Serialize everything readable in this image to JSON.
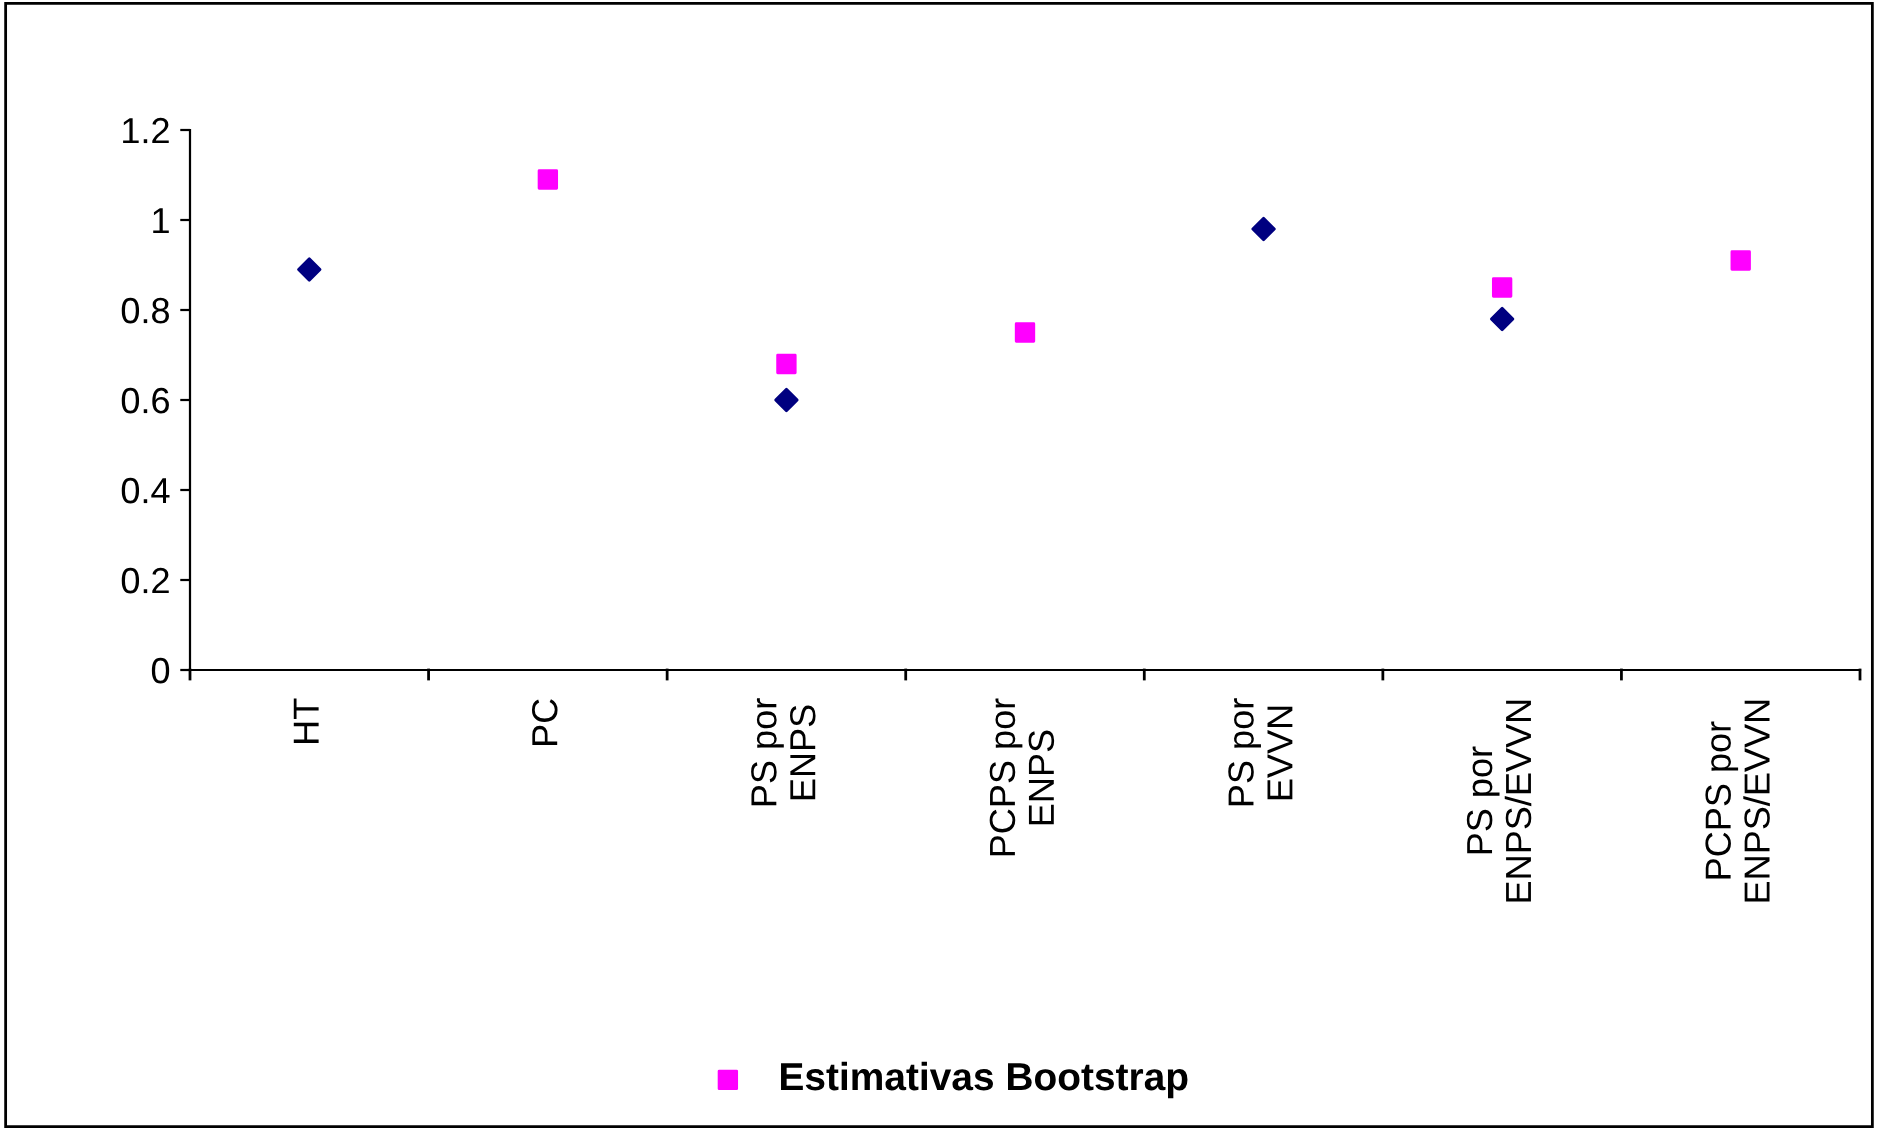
{
  "chart_data": {
    "type": "scatter",
    "categories": [
      "HT",
      "PC",
      "PS por\nENPS",
      "PCPS por\nENPS",
      "PS por\nEVVN",
      "PS por\nENPS/EVVN",
      "PCPS por\nENPS/EVVN"
    ],
    "series": [
      {
        "color": "#000080",
        "marker": "diamond",
        "values": [
          0.89,
          null,
          0.6,
          null,
          0.98,
          0.78,
          null
        ]
      },
      {
        "name": "Estimativas Bootstrap",
        "color": "#ff00ff",
        "marker": "square",
        "values": [
          null,
          1.09,
          0.68,
          0.75,
          null,
          0.85,
          0.91
        ]
      }
    ],
    "ylim": [
      0,
      1.2
    ],
    "yticks": [
      0,
      0.2,
      0.4,
      0.6,
      0.8,
      1,
      1.2
    ],
    "grid": false,
    "legend": "bottom"
  }
}
